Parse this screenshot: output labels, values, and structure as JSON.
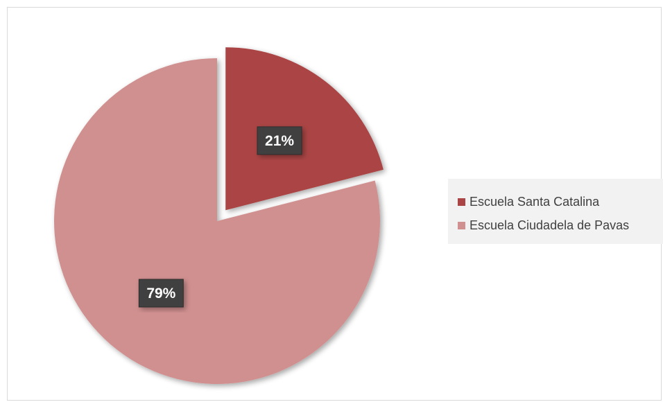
{
  "chart_data": {
    "type": "pie",
    "slices": [
      {
        "label": "Escuela Santa Catalina",
        "value": 21,
        "display": "21%",
        "color": "#ab4444",
        "exploded": true
      },
      {
        "label": "Escuela Ciudadela de Pavas",
        "value": 79,
        "display": "79%",
        "color": "#d19090",
        "exploded": false
      }
    ],
    "start_angle_deg": 0,
    "direction": "clockwise",
    "legend_position": "right",
    "title": ""
  }
}
